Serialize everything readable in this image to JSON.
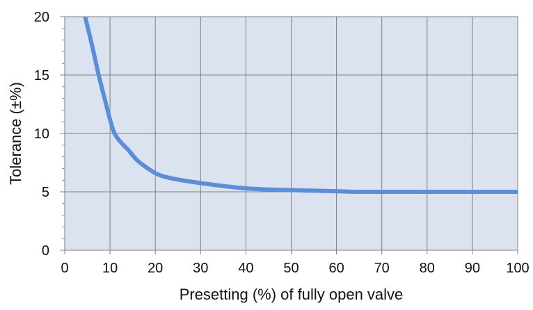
{
  "colors": {
    "plot_background": "#dbe3f0",
    "grid": "#7f7f7f",
    "axis": "#7f7f7f",
    "series": "#5b8ed6"
  },
  "chart_data": {
    "type": "line",
    "title": "",
    "xlabel": "Presetting (%) of fully open valve",
    "ylabel": "Tolerance (±%)",
    "xlim": [
      0,
      100
    ],
    "ylim": [
      0,
      20
    ],
    "x_ticks": [
      0,
      10,
      20,
      30,
      40,
      50,
      60,
      70,
      80,
      90,
      100
    ],
    "y_ticks": [
      0,
      5,
      10,
      15,
      20
    ],
    "x_tick_labels": [
      "0",
      "10",
      "20",
      "30",
      "40",
      "50",
      "60",
      "70",
      "80",
      "90",
      "100"
    ],
    "y_tick_labels": [
      "0",
      "5",
      "10",
      "15",
      "20"
    ],
    "grid": true,
    "legend": false,
    "series": [
      {
        "x": [
          4.5,
          6,
          7.5,
          9,
          10,
          11,
          12.5,
          14,
          16,
          18,
          20,
          22,
          25,
          30,
          35,
          40,
          45,
          50,
          55,
          60,
          65,
          70,
          80,
          90,
          100
        ],
        "y": [
          20.0,
          17.6,
          15.0,
          12.7,
          11.2,
          10.0,
          9.2,
          8.6,
          7.7,
          7.1,
          6.6,
          6.3,
          6.05,
          5.75,
          5.5,
          5.3,
          5.2,
          5.15,
          5.1,
          5.05,
          5.0,
          5.0,
          5.0,
          5.0,
          5.0
        ]
      }
    ]
  }
}
